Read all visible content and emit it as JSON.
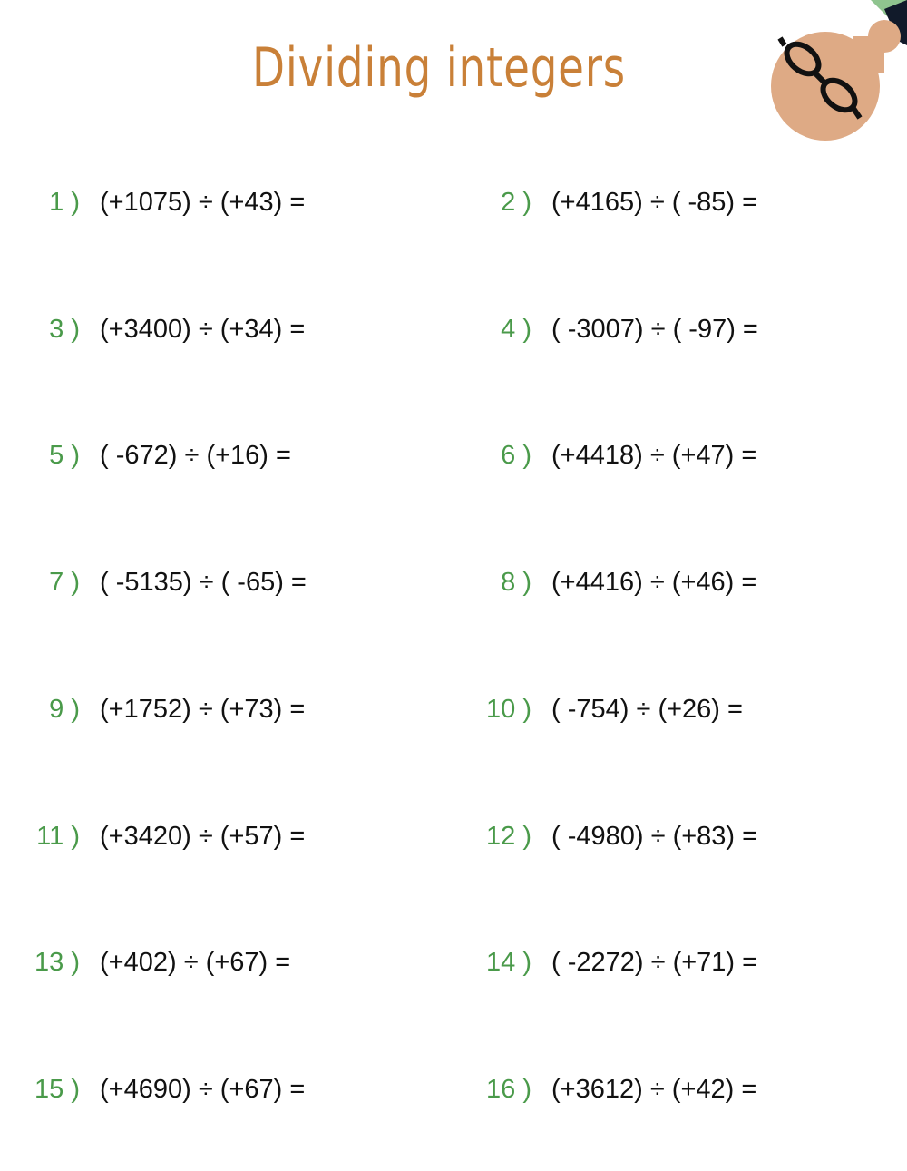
{
  "title": "Dividing integers",
  "colors": {
    "title": "#c98038",
    "number": "#4a9a4a",
    "text": "#111111"
  },
  "decoration": "cartoon-head-with-glasses",
  "problems": [
    {
      "number": "1 )",
      "expression": "(+1075) ÷ (+43)  ="
    },
    {
      "number": "2 )",
      "expression": "(+4165) ÷ ( -85)  ="
    },
    {
      "number": "3 )",
      "expression": "(+3400) ÷ (+34)  ="
    },
    {
      "number": "4 )",
      "expression": "( -3007) ÷ ( -97)  ="
    },
    {
      "number": "5 )",
      "expression": "( -672) ÷ (+16)  ="
    },
    {
      "number": "6 )",
      "expression": "(+4418) ÷ (+47)  ="
    },
    {
      "number": "7 )",
      "expression": "( -5135) ÷ ( -65)  ="
    },
    {
      "number": "8 )",
      "expression": "(+4416) ÷ (+46)  ="
    },
    {
      "number": "9 )",
      "expression": "(+1752) ÷ (+73)  ="
    },
    {
      "number": "10 )",
      "expression": "( -754) ÷ (+26)  ="
    },
    {
      "number": "11 )",
      "expression": "(+3420) ÷ (+57)  ="
    },
    {
      "number": "12 )",
      "expression": "( -4980) ÷ (+83)  ="
    },
    {
      "number": "13 )",
      "expression": "(+402) ÷ (+67)  ="
    },
    {
      "number": "14 )",
      "expression": "( -2272) ÷ (+71)  ="
    },
    {
      "number": "15 )",
      "expression": "(+4690) ÷ (+67)  ="
    },
    {
      "number": "16 )",
      "expression": "(+3612) ÷ (+42)  ="
    }
  ]
}
